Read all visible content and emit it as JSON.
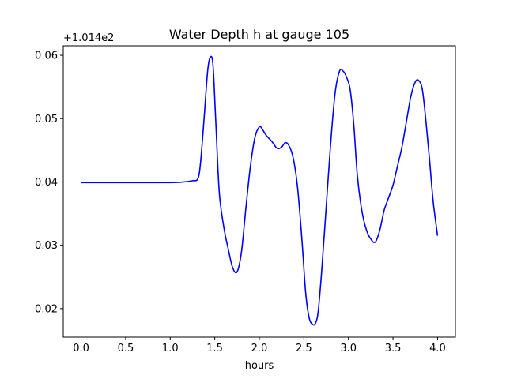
{
  "chart_data": {
    "type": "line",
    "title": "Water Depth h at gauge 105",
    "xlabel": "hours",
    "ylabel": "",
    "y_offset_label": "+1.014e2",
    "xlim": [
      -0.2,
      4.2
    ],
    "ylim": [
      0.0155,
      0.0615
    ],
    "x_ticks": [
      0.0,
      0.5,
      1.0,
      1.5,
      2.0,
      2.5,
      3.0,
      3.5,
      4.0
    ],
    "x_tick_labels": [
      "0.0",
      "0.5",
      "1.0",
      "1.5",
      "2.0",
      "2.5",
      "3.0",
      "3.5",
      "4.0"
    ],
    "y_ticks": [
      0.02,
      0.03,
      0.04,
      0.05,
      0.06
    ],
    "y_tick_labels": [
      "0.02",
      "0.03",
      "0.04",
      "0.05",
      "0.06"
    ],
    "grid": false,
    "series": [
      {
        "color": "#0000ff",
        "x": [
          0.0,
          0.5,
          1.0,
          1.15,
          1.25,
          1.31,
          1.34,
          1.38,
          1.42,
          1.45,
          1.48,
          1.51,
          1.55,
          1.6,
          1.65,
          1.7,
          1.75,
          1.8,
          1.85,
          1.9,
          1.95,
          2.0,
          2.03,
          2.08,
          2.14,
          2.2,
          2.25,
          2.29,
          2.33,
          2.38,
          2.43,
          2.48,
          2.52,
          2.56,
          2.6,
          2.63,
          2.66,
          2.7,
          2.75,
          2.8,
          2.85,
          2.9,
          2.94,
          2.98,
          3.02,
          3.06,
          3.1,
          3.15,
          3.2,
          3.25,
          3.3,
          3.35,
          3.4,
          3.45,
          3.5,
          3.55,
          3.6,
          3.65,
          3.7,
          3.75,
          3.79,
          3.83,
          3.87,
          3.91,
          3.95,
          4.0
        ],
        "y": [
          0.0399,
          0.0399,
          0.0399,
          0.04,
          0.0402,
          0.0405,
          0.043,
          0.05,
          0.0575,
          0.0597,
          0.0585,
          0.05,
          0.0385,
          0.033,
          0.0295,
          0.0265,
          0.0258,
          0.029,
          0.036,
          0.0425,
          0.047,
          0.0487,
          0.0484,
          0.0473,
          0.0464,
          0.0453,
          0.0455,
          0.0462,
          0.0458,
          0.0438,
          0.039,
          0.0305,
          0.0225,
          0.0185,
          0.0175,
          0.0177,
          0.0195,
          0.026,
          0.036,
          0.046,
          0.054,
          0.0575,
          0.0575,
          0.0565,
          0.0545,
          0.049,
          0.041,
          0.0355,
          0.0325,
          0.031,
          0.0305,
          0.0323,
          0.0355,
          0.0375,
          0.0395,
          0.0425,
          0.0455,
          0.0495,
          0.0535,
          0.0558,
          0.056,
          0.0545,
          0.0495,
          0.0435,
          0.037,
          0.0315
        ]
      }
    ]
  }
}
